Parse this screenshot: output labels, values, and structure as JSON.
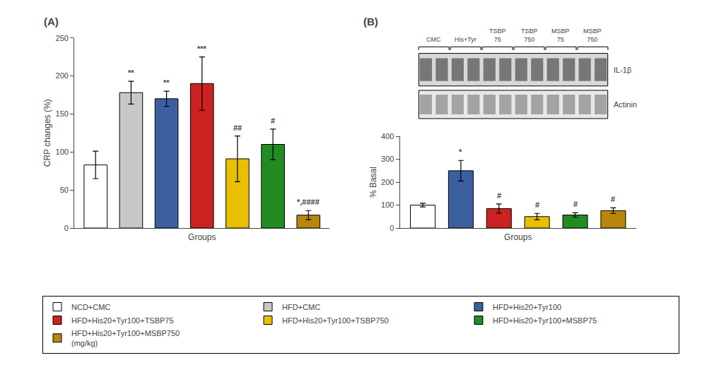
{
  "chart_data": [
    {
      "type": "bar",
      "title": "(A)",
      "categories": [
        "NCD+CMC",
        "HFD+CMC",
        "HFD+His20+Tyr100",
        "HFD+His20+Tyr100+TSBP75",
        "HFD+His20+Tyr100+TSBP750",
        "HFD+His20+Tyr100+MSBP75",
        "HFD+His20+Tyr100+MSBP750\n(mg/kg)"
      ],
      "values": [
        83,
        178,
        170,
        190,
        91,
        110,
        17
      ],
      "errors": [
        18,
        15,
        10,
        35,
        30,
        20,
        6
      ],
      "colors": [
        "#ffffff",
        "#c8c8c8",
        "#3c5fa0",
        "#cc2222",
        "#e8c000",
        "#228b22",
        "#b8860b"
      ],
      "annotations": [
        null,
        "**",
        "**",
        "***",
        "##",
        "#",
        "*,####"
      ],
      "xlabel": "Groups",
      "ylabel": "CRP changes (%)",
      "ylim": [
        0,
        250
      ],
      "yticks": [
        0,
        50,
        100,
        150,
        200,
        250
      ],
      "tick_labels": "y",
      "grid": false,
      "legend": "bottom"
    },
    {
      "type": "bar",
      "title": "(B)",
      "categories": [
        "NCD+CMC",
        "HFD+His20+Tyr100",
        "HFD+His20+Tyr100+TSBP75",
        "HFD+His20+Tyr100+TSBP750",
        "HFD+His20+Tyr100+MSBP75",
        "HFD+His20+Tyr100+MSBP750"
      ],
      "values": [
        100,
        250,
        85,
        50,
        57,
        76
      ],
      "errors": [
        8,
        45,
        20,
        14,
        10,
        12
      ],
      "colors": [
        "#ffffff",
        "#3c5fa0",
        "#cc2222",
        "#e8c000",
        "#228b22",
        "#b8860b"
      ],
      "annotations": [
        null,
        "*",
        "#",
        "#",
        "#",
        "#"
      ],
      "xlabel": "Groups",
      "ylabel": "% Basal",
      "ylim": [
        0,
        400
      ],
      "yticks": [
        0,
        100,
        200,
        300,
        400
      ],
      "tick_labels": "y",
      "grid": false,
      "blot": {
        "rows": [
          "IL-1β",
          "Actinin"
        ],
        "groups": [
          "CMC",
          "His+Tyr",
          "TSBP\n75",
          "TSBP\n750",
          "MSBP\n75",
          "MSBP\n750"
        ]
      }
    }
  ]
}
